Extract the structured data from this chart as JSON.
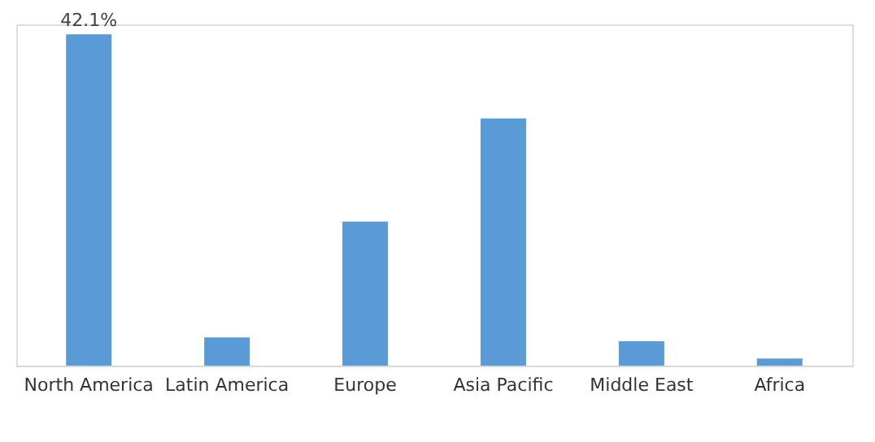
{
  "chart_data": {
    "type": "bar",
    "categories": [
      "North America",
      "Latin America",
      "Europe",
      "Asia Pacific",
      "Middle East",
      "Africa"
    ],
    "values": [
      42.1,
      3.6,
      18.3,
      31.4,
      3.1,
      0.9
    ],
    "value_labels": [
      "42.1%",
      null,
      null,
      null,
      null,
      null
    ],
    "color": "#5b9bd5",
    "grid": false
  }
}
